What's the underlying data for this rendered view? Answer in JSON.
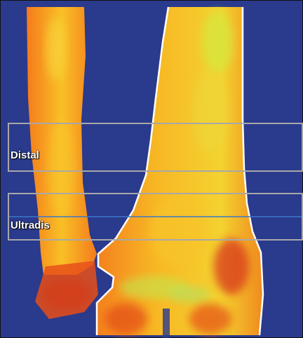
{
  "colors": {
    "background": "#2a3a8c",
    "bone_low": "#f26a1b",
    "bone_mid": "#f6b81f",
    "bone_high": "#cfe83a",
    "bone_dense": "#d32c10",
    "contour": "#ffffff",
    "roi_frame": "#a8a8a8",
    "ultradis_line": "#3a78c8"
  },
  "regions": {
    "distal": {
      "label": "Distal"
    },
    "ultradis": {
      "label": "Ultradis"
    }
  }
}
